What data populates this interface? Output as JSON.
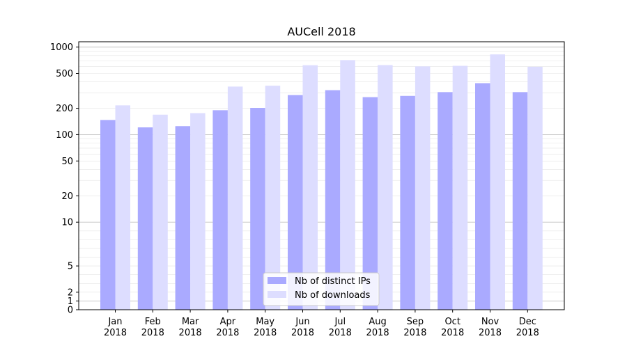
{
  "chart_data": {
    "type": "bar",
    "title": "AUCell 2018",
    "categories": [
      [
        "Jan",
        "2018"
      ],
      [
        "Feb",
        "2018"
      ],
      [
        "Mar",
        "2018"
      ],
      [
        "Apr",
        "2018"
      ],
      [
        "May",
        "2018"
      ],
      [
        "Jun",
        "2018"
      ],
      [
        "Jul",
        "2018"
      ],
      [
        "Aug",
        "2018"
      ],
      [
        "Sep",
        "2018"
      ],
      [
        "Oct",
        "2018"
      ],
      [
        "Nov",
        "2018"
      ],
      [
        "Dec",
        "2018"
      ]
    ],
    "series": [
      {
        "name": "Nb of distinct IPs",
        "color": "#aaaaff",
        "values": [
          147,
          121,
          125,
          190,
          202,
          283,
          322,
          268,
          277,
          306,
          387,
          306
        ]
      },
      {
        "name": "Nb of downloads",
        "color": "#ddddff",
        "values": [
          216,
          169,
          176,
          354,
          362,
          620,
          710,
          622,
          602,
          611,
          825,
          596
        ]
      }
    ],
    "yscale": "symlog",
    "ylim": [
      0,
      1150
    ],
    "yticks": [
      0,
      1,
      2,
      5,
      10,
      20,
      50,
      100,
      200,
      500,
      1000
    ],
    "ytick_labels": [
      "0",
      "1",
      "2",
      "5",
      "10",
      "20",
      "50",
      "100",
      "200",
      "500",
      "1000"
    ],
    "grid": true,
    "legend_position": "lower center"
  }
}
